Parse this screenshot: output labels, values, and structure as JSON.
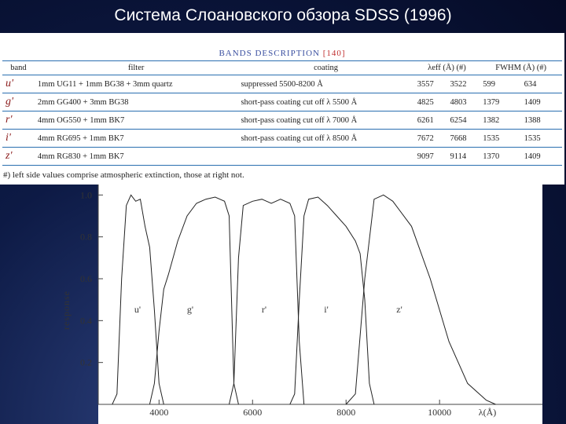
{
  "title": "Система Слоановского обзора SDSS (1996)",
  "table": {
    "caption": "BANDS DESCRIPTION",
    "reference": "[140]",
    "header": [
      "band",
      "filter",
      "coating",
      "λeff (Å) (#)",
      "FWHM (Å) (#)"
    ],
    "rows": [
      [
        "u'",
        "1mm UG11 + 1mm BG38 + 3mm quartz",
        "suppressed 5500-8200 Å",
        "3557",
        "3522",
        "599",
        "634"
      ],
      [
        "g'",
        "2mm GG400 + 3mm BG38",
        "short-pass coating cut off λ 5500 Å",
        "4825",
        "4803",
        "1379",
        "1409"
      ],
      [
        "r'",
        "4mm OG550 + 1mm BK7",
        "short-pass coating cut off λ 7000 Å",
        "6261",
        "6254",
        "1382",
        "1388"
      ],
      [
        "i'",
        "4mm RG695 + 1mm BK7",
        "short-pass coating cut off λ 8500 Å",
        "7672",
        "7668",
        "1535",
        "1535"
      ],
      [
        "z'",
        "4mm RG830 + 1mm BK7",
        "",
        "9097",
        "9114",
        "1370",
        "1409"
      ]
    ],
    "footnote": "#) left side values comprise atmospheric extinction, those at right not."
  },
  "chart_data": {
    "type": "line",
    "xlabel": "λ(Å)",
    "ylabel": "response",
    "xlim": [
      2700,
      12200
    ],
    "ylim": [
      0,
      1.05
    ],
    "xticks": [
      4000,
      6000,
      8000,
      10000
    ],
    "yticks": [
      0.2,
      0.4,
      0.6,
      0.8,
      {
        "value": 1,
        "label": "1.0"
      }
    ],
    "color": "#222222",
    "series": [
      {
        "name": "u'",
        "x": [
          3000,
          3100,
          3200,
          3300,
          3400,
          3500,
          3600,
          3700,
          3800,
          3900,
          4000,
          4100
        ],
        "values": [
          0,
          0.05,
          0.6,
          0.95,
          1.0,
          0.97,
          0.98,
          0.85,
          0.75,
          0.45,
          0.1,
          0
        ]
      },
      {
        "name": "g'",
        "x": [
          3800,
          3900,
          4000,
          4100,
          4200,
          4400,
          4600,
          4800,
          5000,
          5200,
          5400,
          5500,
          5550,
          5600,
          5700
        ],
        "values": [
          0,
          0.1,
          0.35,
          0.55,
          0.62,
          0.78,
          0.9,
          0.96,
          0.98,
          0.99,
          0.97,
          0.9,
          0.5,
          0.1,
          0
        ]
      },
      {
        "name": "r'",
        "x": [
          5500,
          5600,
          5700,
          5800,
          6000,
          6200,
          6400,
          6600,
          6800,
          6900,
          7000,
          7100
        ],
        "values": [
          0,
          0.1,
          0.7,
          0.95,
          0.97,
          0.98,
          0.96,
          0.98,
          0.96,
          0.9,
          0.3,
          0
        ]
      },
      {
        "name": "i'",
        "x": [
          6800,
          6900,
          7000,
          7100,
          7200,
          7400,
          7600,
          7800,
          8000,
          8200,
          8300,
          8400,
          8500,
          8600
        ],
        "values": [
          0,
          0.05,
          0.5,
          0.9,
          0.98,
          0.99,
          0.95,
          0.9,
          0.85,
          0.78,
          0.72,
          0.5,
          0.1,
          0
        ]
      },
      {
        "name": "z'",
        "x": [
          8000,
          8200,
          8400,
          8600,
          8800,
          9000,
          9400,
          9800,
          10200,
          10600,
          11000,
          11200
        ],
        "values": [
          0,
          0.05,
          0.6,
          0.98,
          1.0,
          0.97,
          0.85,
          0.6,
          0.3,
          0.1,
          0.02,
          0
        ]
      }
    ]
  }
}
